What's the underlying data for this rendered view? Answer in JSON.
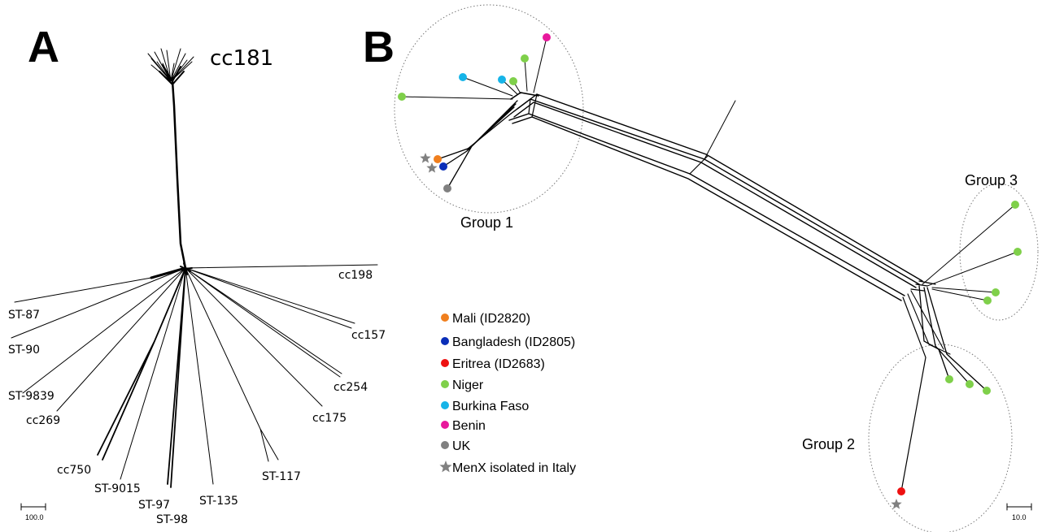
{
  "panel_a": {
    "letter": "A",
    "top_label": "cc181",
    "tips": [
      {
        "id": "cc198",
        "label": "cc198"
      },
      {
        "id": "cc157",
        "label": "cc157"
      },
      {
        "id": "cc254",
        "label": "cc254"
      },
      {
        "id": "cc175",
        "label": "cc175"
      },
      {
        "id": "st-117",
        "label": "ST-117"
      },
      {
        "id": "st-135",
        "label": "ST-135"
      },
      {
        "id": "st-97",
        "label": "ST-97"
      },
      {
        "id": "st-98",
        "label": "ST-98"
      },
      {
        "id": "st-9015",
        "label": "ST-9015"
      },
      {
        "id": "cc750",
        "label": "cc750"
      },
      {
        "id": "cc269",
        "label": "cc269"
      },
      {
        "id": "st-9839",
        "label": "ST-9839"
      },
      {
        "id": "st-90",
        "label": "ST-90"
      },
      {
        "id": "st-87",
        "label": "ST-87"
      }
    ],
    "scale_label": "100.0"
  },
  "panel_b": {
    "letter": "B",
    "groups": [
      {
        "id": "group-1",
        "label": "Group 1"
      },
      {
        "id": "group-2",
        "label": "Group 2"
      },
      {
        "id": "group-3",
        "label": "Group 3"
      }
    ],
    "legend": [
      {
        "id": "mali",
        "label": "Mali (ID2820)",
        "color": "#f07f1e",
        "marker": "circle"
      },
      {
        "id": "bangladesh",
        "label": "Bangladesh (ID2805)",
        "color": "#0a2eb8",
        "marker": "circle"
      },
      {
        "id": "eritrea",
        "label": "Eritrea (ID2683)",
        "color": "#ee1111",
        "marker": "circle"
      },
      {
        "id": "niger",
        "label": "Niger",
        "color": "#7fd04a",
        "marker": "circle"
      },
      {
        "id": "burkina-faso",
        "label": "Burkina Faso",
        "color": "#16b4e8",
        "marker": "circle"
      },
      {
        "id": "benin",
        "label": "Benin",
        "color": "#e8189c",
        "marker": "circle"
      },
      {
        "id": "uk",
        "label": "UK",
        "color": "#808080",
        "marker": "circle"
      },
      {
        "id": "menx-italy",
        "label": "MenX isolated in Italy",
        "color": "#808080",
        "marker": "star"
      }
    ],
    "scale_label": "10.0"
  }
}
